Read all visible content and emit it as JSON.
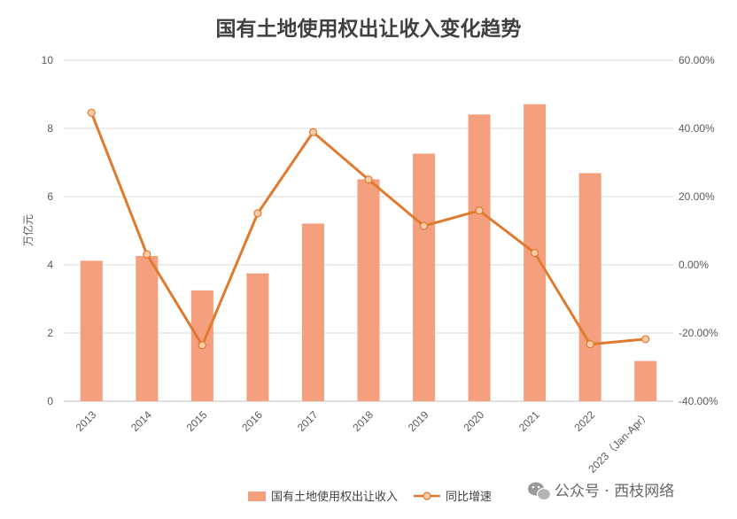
{
  "chart_data": {
    "type": "bar",
    "title": "国有土地使用权出让收入变化趋势",
    "ylabel": "万亿元",
    "y2label": "",
    "categories": [
      "2013",
      "2014",
      "2015",
      "2016",
      "2017",
      "2018",
      "2019",
      "2020",
      "2021",
      "2022",
      "2023（Jan-Apr）"
    ],
    "yticks": [
      "0",
      "2",
      "4",
      "6",
      "8",
      "10"
    ],
    "y2ticks": [
      "-40.00%",
      "-20.00%",
      "0.00%",
      "20.00%",
      "40.00%",
      "60.00%"
    ],
    "ylim": [
      0,
      10
    ],
    "y2lim": [
      -40,
      60
    ],
    "grid": true,
    "legend_position": "bottom",
    "series": [
      {
        "name": "国有土地使用权出让收入",
        "type": "bar",
        "axis": "left",
        "color": "#F4A07F",
        "values": [
          4.12,
          4.26,
          3.25,
          3.75,
          5.21,
          6.51,
          7.26,
          8.41,
          8.71,
          6.69,
          1.18
        ]
      },
      {
        "name": "同比增速",
        "type": "line",
        "axis": "right",
        "color": "#E07A2E",
        "marker_fill": "#F9CBA8",
        "values": [
          44.6,
          3.1,
          -23.6,
          15.1,
          38.9,
          25.0,
          11.4,
          15.9,
          3.5,
          -23.3,
          -21.8
        ]
      }
    ]
  },
  "watermark": {
    "text": "公众号 · 西枝网络",
    "icon": "wechat-icon"
  }
}
